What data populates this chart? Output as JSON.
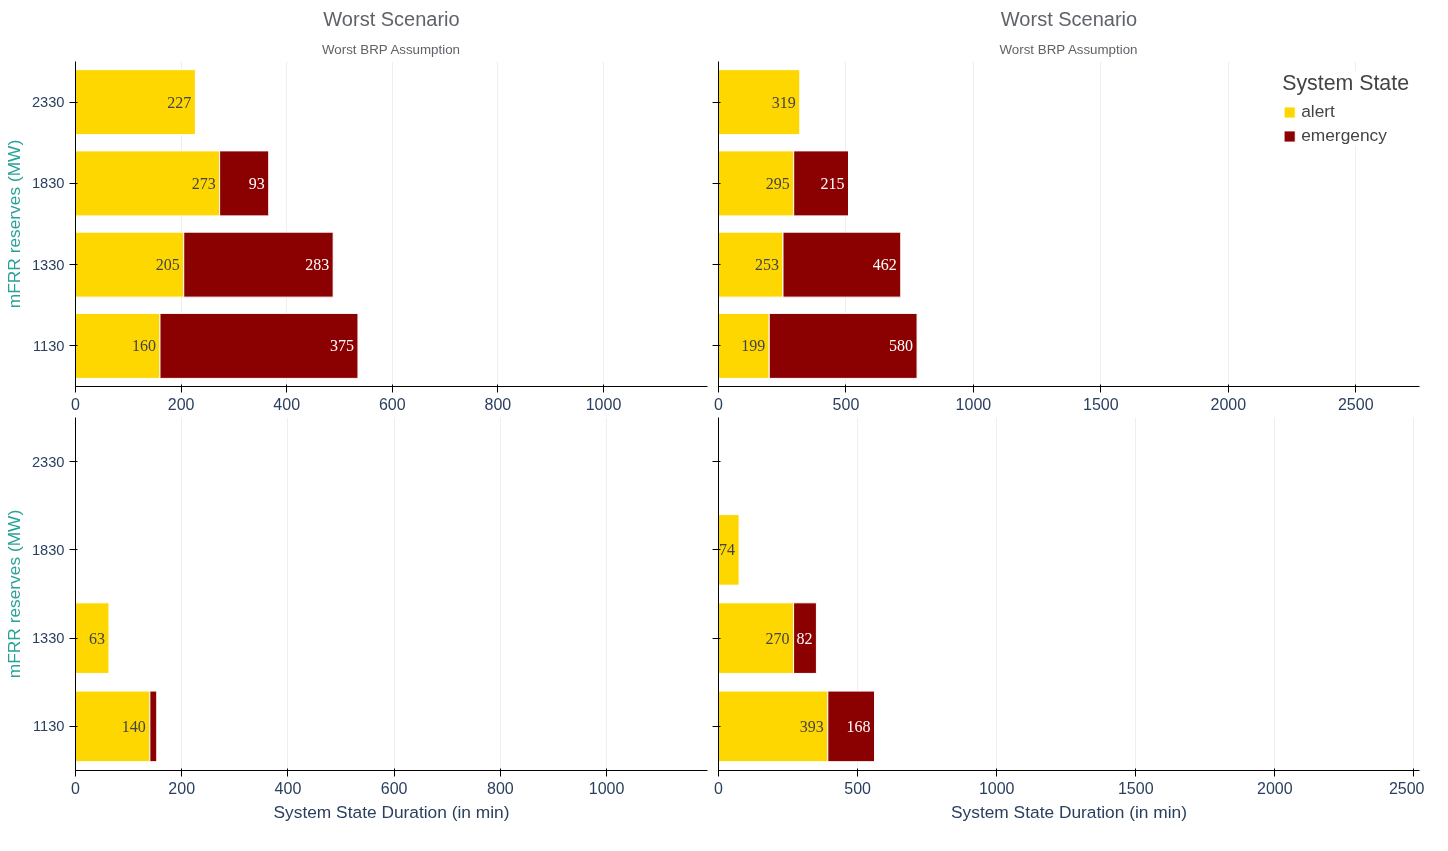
{
  "chart_data": [
    {
      "type": "bar",
      "orientation": "horizontal",
      "stacked": true,
      "title": "Worst Scenario",
      "subtitle": "Worst BRP Assumption",
      "ylabel": "mFRR reserves (MW)",
      "categories": [
        "2330",
        "1830",
        "1330",
        "1130"
      ],
      "xlim": [
        0,
        1197
      ],
      "xticks": [
        0,
        200,
        400,
        600,
        800,
        1000
      ],
      "grid": "x",
      "series": [
        {
          "color": "#ffd700",
          "values": [
            227,
            273,
            205,
            160
          ],
          "value_labels": [
            "227",
            "273",
            "205",
            "160"
          ]
        },
        {
          "color": "#8b0000",
          "values": [
            null,
            93,
            283,
            375
          ],
          "value_labels": [
            null,
            "93",
            "283",
            "375"
          ]
        }
      ]
    },
    {
      "type": "bar",
      "orientation": "horizontal",
      "stacked": true,
      "title": "Worst Scenario",
      "subtitle": "Worst BRP Assumption",
      "legend_title": "System State",
      "legend": "top right",
      "tick_labels": "x",
      "categories": [
        "2330",
        "1830",
        "1330",
        "1130"
      ],
      "xlim": [
        0,
        2750
      ],
      "xticks": [
        0,
        500,
        1000,
        1500,
        2000,
        2500
      ],
      "grid": "x",
      "series": [
        {
          "name": "alert",
          "color": "#ffd700",
          "values": [
            319,
            295,
            253,
            199
          ],
          "value_labels": [
            "319",
            "295",
            "253",
            "199"
          ]
        },
        {
          "name": "emergency",
          "color": "#8b0000",
          "values": [
            null,
            215,
            462,
            580
          ],
          "value_labels": [
            null,
            "215",
            "462",
            "580"
          ]
        }
      ]
    },
    {
      "type": "bar",
      "orientation": "horizontal",
      "stacked": true,
      "xlabel": "System State Duration (in min)",
      "ylabel": "mFRR reserves (MW)",
      "categories": [
        "2330",
        "1830",
        "1330",
        "1130"
      ],
      "xlim": [
        0,
        1190
      ],
      "xticks": [
        0,
        200,
        400,
        600,
        800,
        1000
      ],
      "grid": "x",
      "series": [
        {
          "color": "#ffd700",
          "values": [
            null,
            null,
            63,
            140
          ],
          "value_labels": [
            null,
            null,
            "63",
            "140"
          ]
        },
        {
          "color": "#8b0000",
          "values": [
            null,
            null,
            null,
            13
          ],
          "value_labels": [
            null,
            null,
            null,
            null
          ]
        }
      ]
    },
    {
      "type": "bar",
      "orientation": "horizontal",
      "stacked": true,
      "xlabel": "System State Duration (in min)",
      "categories": [
        "2330",
        "1830",
        "1330",
        "1130"
      ],
      "tick_labels": "x",
      "xlim": [
        0,
        2520
      ],
      "xticks": [
        0,
        500,
        1000,
        1500,
        2000,
        2500
      ],
      "grid": "x",
      "series": [
        {
          "color": "#ffd700",
          "values": [
            null,
            74,
            270,
            393
          ],
          "value_labels": [
            null,
            "74",
            "270",
            "393"
          ]
        },
        {
          "color": "#8b0000",
          "values": [
            null,
            null,
            82,
            168
          ],
          "value_labels": [
            null,
            null,
            "82",
            "168"
          ]
        }
      ]
    }
  ]
}
